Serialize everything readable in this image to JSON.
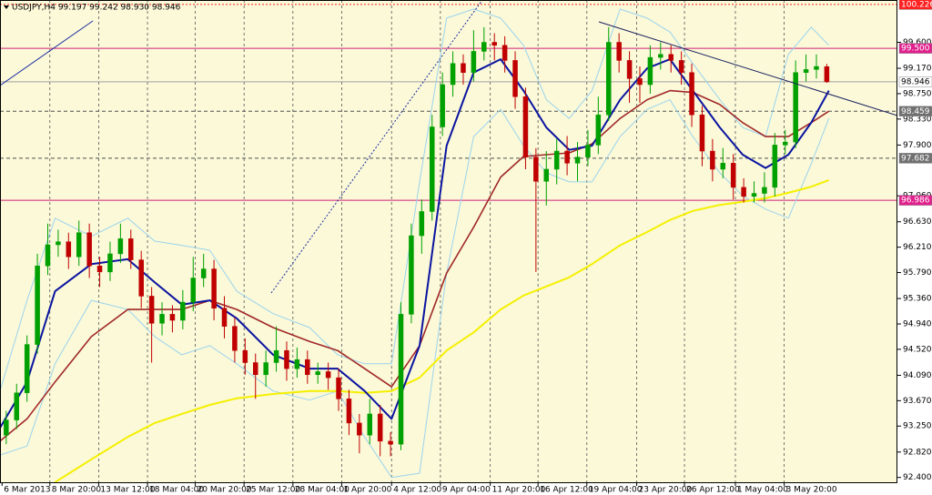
{
  "chart_data": {
    "type": "candlestick",
    "title": "USDJPY,H4  99.197 99.242 98.930 98.946",
    "background": "#fbf9d8",
    "up_color": "#00a000",
    "down_color": "#c00000",
    "xlim": [
      -0.6,
      85.8
    ],
    "ylim": [
      92.32,
      100.3
    ],
    "grid": "vertical",
    "open": [
      93.1,
      93.35,
      93.8,
      94.6,
      95.9,
      96.25,
      96.3,
      96.05,
      96.45,
      95.9,
      95.8,
      96.1,
      96.35,
      96.0,
      95.4,
      94.95,
      95.1,
      95.0,
      95.3,
      95.7,
      95.85,
      95.2,
      94.9,
      94.5,
      94.3,
      94.1,
      94.3,
      94.5,
      94.2,
      94.35,
      94.1,
      94.15,
      94.05,
      93.7,
      93.3,
      93.1,
      93.45,
      93.0,
      92.95,
      95.1,
      96.4,
      96.8,
      98.2,
      98.9,
      99.25,
      99.1,
      99.45,
      99.6,
      99.55,
      99.3,
      98.7,
      97.7,
      97.3,
      97.5,
      97.8,
      97.6,
      97.7,
      97.9,
      98.4,
      99.6,
      99.3,
      99.0,
      98.9,
      99.35,
      99.4,
      99.3,
      99.1,
      98.4,
      97.8,
      97.5,
      97.6,
      97.2,
      97.05,
      97.1,
      97.2,
      97.9,
      97.95,
      99.1,
      99.15,
      99.197
    ],
    "high": [
      93.5,
      93.95,
      94.75,
      96.1,
      96.6,
      96.5,
      96.45,
      96.65,
      96.6,
      96.05,
      96.3,
      96.6,
      96.5,
      96.15,
      95.55,
      95.3,
      95.25,
      95.5,
      96.05,
      96.1,
      96.0,
      95.4,
      95.05,
      94.7,
      94.45,
      94.5,
      94.9,
      94.65,
      94.55,
      94.5,
      94.3,
      94.3,
      94.2,
      93.85,
      93.45,
      93.7,
      93.6,
      93.15,
      95.3,
      96.6,
      97.0,
      98.4,
      99.1,
      99.45,
      99.4,
      99.8,
      99.85,
      99.75,
      99.7,
      99.45,
      98.85,
      97.85,
      97.8,
      98.0,
      98.05,
      97.95,
      98.15,
      98.7,
      99.85,
      99.75,
      99.45,
      99.2,
      99.55,
      99.6,
      99.55,
      99.45,
      99.25,
      98.55,
      98.0,
      97.85,
      97.75,
      97.35,
      97.3,
      97.45,
      98.1,
      98.15,
      99.3,
      99.4,
      99.4,
      99.242
    ],
    "low": [
      92.95,
      93.2,
      93.65,
      94.45,
      95.75,
      96.05,
      95.85,
      95.9,
      95.7,
      95.55,
      95.65,
      95.95,
      95.85,
      95.2,
      94.3,
      94.75,
      94.8,
      94.85,
      95.15,
      95.55,
      95.0,
      94.7,
      94.3,
      94.1,
      93.7,
      93.9,
      94.15,
      94.0,
      94.05,
      93.95,
      93.95,
      93.85,
      93.5,
      93.1,
      92.8,
      92.95,
      92.75,
      92.75,
      92.85,
      94.95,
      96.1,
      96.65,
      98.05,
      98.7,
      98.9,
      98.95,
      99.3,
      99.3,
      99.1,
      98.5,
      97.5,
      95.8,
      96.9,
      97.25,
      97.4,
      97.3,
      97.55,
      97.75,
      98.3,
      99.1,
      98.6,
      98.6,
      98.75,
      99.15,
      99.1,
      98.9,
      98.2,
      97.55,
      97.3,
      97.35,
      97.0,
      96.95,
      96.95,
      96.95,
      97.05,
      97.75,
      97.85,
      98.95,
      99.0,
      98.93
    ],
    "close": [
      93.35,
      93.8,
      94.6,
      95.9,
      96.25,
      96.3,
      96.05,
      96.45,
      95.9,
      95.8,
      96.1,
      96.35,
      96.0,
      95.4,
      94.95,
      95.1,
      95.0,
      95.3,
      95.7,
      95.85,
      95.2,
      94.9,
      94.5,
      94.3,
      94.1,
      94.3,
      94.5,
      94.2,
      94.35,
      94.1,
      94.15,
      94.05,
      93.7,
      93.3,
      93.1,
      93.45,
      93.0,
      92.95,
      95.1,
      96.4,
      96.8,
      98.2,
      98.9,
      99.25,
      99.1,
      99.45,
      99.6,
      99.55,
      99.3,
      98.7,
      97.7,
      97.3,
      97.5,
      97.8,
      97.6,
      97.7,
      97.9,
      98.4,
      99.6,
      99.3,
      99.0,
      98.9,
      99.35,
      99.4,
      99.3,
      99.1,
      98.4,
      97.8,
      97.5,
      97.6,
      97.2,
      97.05,
      97.1,
      97.2,
      97.9,
      97.95,
      99.1,
      99.15,
      99.2,
      98.946
    ],
    "line_x": [
      -0.6,
      2.0,
      4.7,
      8.2,
      11.7,
      14.3,
      16.9,
      19.6,
      22.2,
      25.7,
      29.2,
      31.9,
      34.5,
      37.1,
      39.8,
      42.4,
      45.0,
      47.6,
      49.8,
      52.0,
      54.2,
      56.4,
      59.1,
      61.7,
      63.9,
      66.1,
      68.7,
      70.9,
      73.1,
      75.3,
      77.5,
      79.2
    ],
    "lines": [
      {
        "color": "#9bd3ee",
        "width": 1,
        "values": [
          93.83,
          95.33,
          96.69,
          96.39,
          96.69,
          96.31,
          96.24,
          96.16,
          95.48,
          95.11,
          94.88,
          94.43,
          94.28,
          94.28,
          97.29,
          100.0,
          100.15,
          100.0,
          99.55,
          98.65,
          98.34,
          98.8,
          100.15,
          100.0,
          99.77,
          99.25,
          98.65,
          98.19,
          98.04,
          99.4,
          99.85,
          99.55
        ]
      },
      {
        "color": "#9bd3ee",
        "width": 1,
        "values": [
          92.77,
          92.92,
          94.28,
          95.33,
          95.18,
          94.73,
          94.43,
          94.58,
          94.28,
          93.83,
          93.68,
          93.83,
          93.07,
          92.4,
          92.47,
          95.78,
          98.04,
          98.49,
          97.89,
          97.44,
          97.29,
          97.29,
          98.04,
          98.49,
          98.65,
          98.04,
          97.44,
          97.06,
          96.84,
          96.69,
          97.59,
          98.34
        ]
      },
      {
        "color": "#f5f000",
        "width": 2,
        "values": [
          null,
          null,
          92.32,
          92.7,
          93.07,
          93.3,
          93.45,
          93.6,
          93.71,
          93.78,
          93.83,
          93.83,
          93.8,
          93.83,
          94.05,
          94.5,
          94.8,
          95.18,
          95.41,
          95.56,
          95.71,
          95.93,
          96.24,
          96.46,
          96.66,
          96.81,
          96.91,
          96.96,
          97.02,
          97.11,
          97.21,
          97.32
        ]
      },
      {
        "color": "#a02828",
        "width": 1.6,
        "values": [
          93.0,
          93.37,
          93.98,
          94.73,
          95.18,
          95.18,
          95.18,
          95.33,
          95.18,
          94.88,
          94.65,
          94.5,
          94.2,
          93.9,
          94.58,
          95.78,
          96.54,
          97.37,
          97.71,
          97.74,
          97.77,
          97.92,
          98.34,
          98.65,
          98.8,
          98.77,
          98.57,
          98.27,
          98.04,
          98.04,
          98.27,
          98.46
        ]
      },
      {
        "color": "#0a14a0",
        "width": 2,
        "values": [
          93.22,
          93.98,
          95.48,
          95.93,
          96.01,
          95.63,
          95.26,
          95.33,
          95.03,
          94.43,
          94.2,
          94.2,
          93.83,
          93.37,
          94.58,
          97.89,
          99.1,
          99.32,
          98.8,
          98.19,
          97.82,
          97.89,
          98.65,
          99.17,
          99.32,
          98.8,
          98.19,
          97.74,
          97.52,
          97.74,
          98.27,
          98.8
        ]
      }
    ],
    "levels": [
      {
        "value": 100.226,
        "label": "100.226",
        "color": "#ff2020",
        "style": "dotted",
        "label_bg": "#ff2020",
        "label_color": "#ffffff"
      },
      {
        "value": 99.5,
        "label": "99.500",
        "color": "#d0207a",
        "style": "solid",
        "label_bg": "#e0208c",
        "label_color": "#ffffff"
      },
      {
        "value": 98.946,
        "label": "98.946",
        "color": "#a0a0a0",
        "style": "solid",
        "label_bg": "#ffffff",
        "label_color": "#000000"
      },
      {
        "value": 98.459,
        "label": "98.459",
        "color": "#505050",
        "style": "dashed",
        "label_bg": "#707070",
        "label_color": "#ffffff"
      },
      {
        "value": 97.682,
        "label": "97.682",
        "color": "#505050",
        "style": "dashed",
        "label_bg": "#707070",
        "label_color": "#ffffff"
      },
      {
        "value": 96.986,
        "label": "96.986",
        "color": "#d0207a",
        "style": "solid",
        "label_bg": "#e0208c",
        "label_color": "#ffffff"
      }
    ],
    "yticks": [
      {
        "value": 99.6,
        "label": "99.600"
      },
      {
        "value": 99.17,
        "label": "99.170"
      },
      {
        "value": 98.75,
        "label": "98.750"
      },
      {
        "value": 98.33,
        "label": "98.330"
      },
      {
        "value": 97.9,
        "label": "97.900"
      },
      {
        "value": 97.06,
        "label": "97.060"
      },
      {
        "value": 96.63,
        "label": "96.630"
      },
      {
        "value": 96.21,
        "label": "96.210"
      },
      {
        "value": 95.79,
        "label": "95.790"
      },
      {
        "value": 95.36,
        "label": "95.360"
      },
      {
        "value": 94.94,
        "label": "94.940"
      },
      {
        "value": 94.52,
        "label": "94.520"
      },
      {
        "value": 94.09,
        "label": "94.090"
      },
      {
        "value": 93.67,
        "label": "93.670"
      },
      {
        "value": 93.25,
        "label": "93.250"
      },
      {
        "value": 92.82,
        "label": "92.820"
      },
      {
        "value": 92.4,
        "label": "92.400"
      }
    ],
    "xticks": [
      {
        "value": -0.4,
        "label": "6 Mar 2013"
      },
      {
        "value": 4.2,
        "label": "8 Mar 20:00"
      },
      {
        "value": 8.9,
        "label": "13 Mar 12:00"
      },
      {
        "value": 13.6,
        "label": "18 Mar 04:00"
      },
      {
        "value": 18.2,
        "label": "20 Mar 20:00"
      },
      {
        "value": 22.9,
        "label": "25 Mar 12:00"
      },
      {
        "value": 27.6,
        "label": "28 Mar 04:00"
      },
      {
        "value": 32.3,
        "label": "1 Apr 20:00"
      },
      {
        "value": 37.1,
        "label": "4 Apr 12:00"
      },
      {
        "value": 41.8,
        "label": "9 Apr 04:00"
      },
      {
        "value": 46.6,
        "label": "11 Apr 20:00"
      },
      {
        "value": 51.2,
        "label": "16 Apr 12:00"
      },
      {
        "value": 55.9,
        "label": "19 Apr 04:00"
      },
      {
        "value": 60.7,
        "label": "23 Apr 20:00"
      },
      {
        "value": 65.3,
        "label": "26 Apr 12:00"
      },
      {
        "value": 70.2,
        "label": "1 May 04:00"
      },
      {
        "value": 74.9,
        "label": "3 May 20:00"
      }
    ]
  }
}
